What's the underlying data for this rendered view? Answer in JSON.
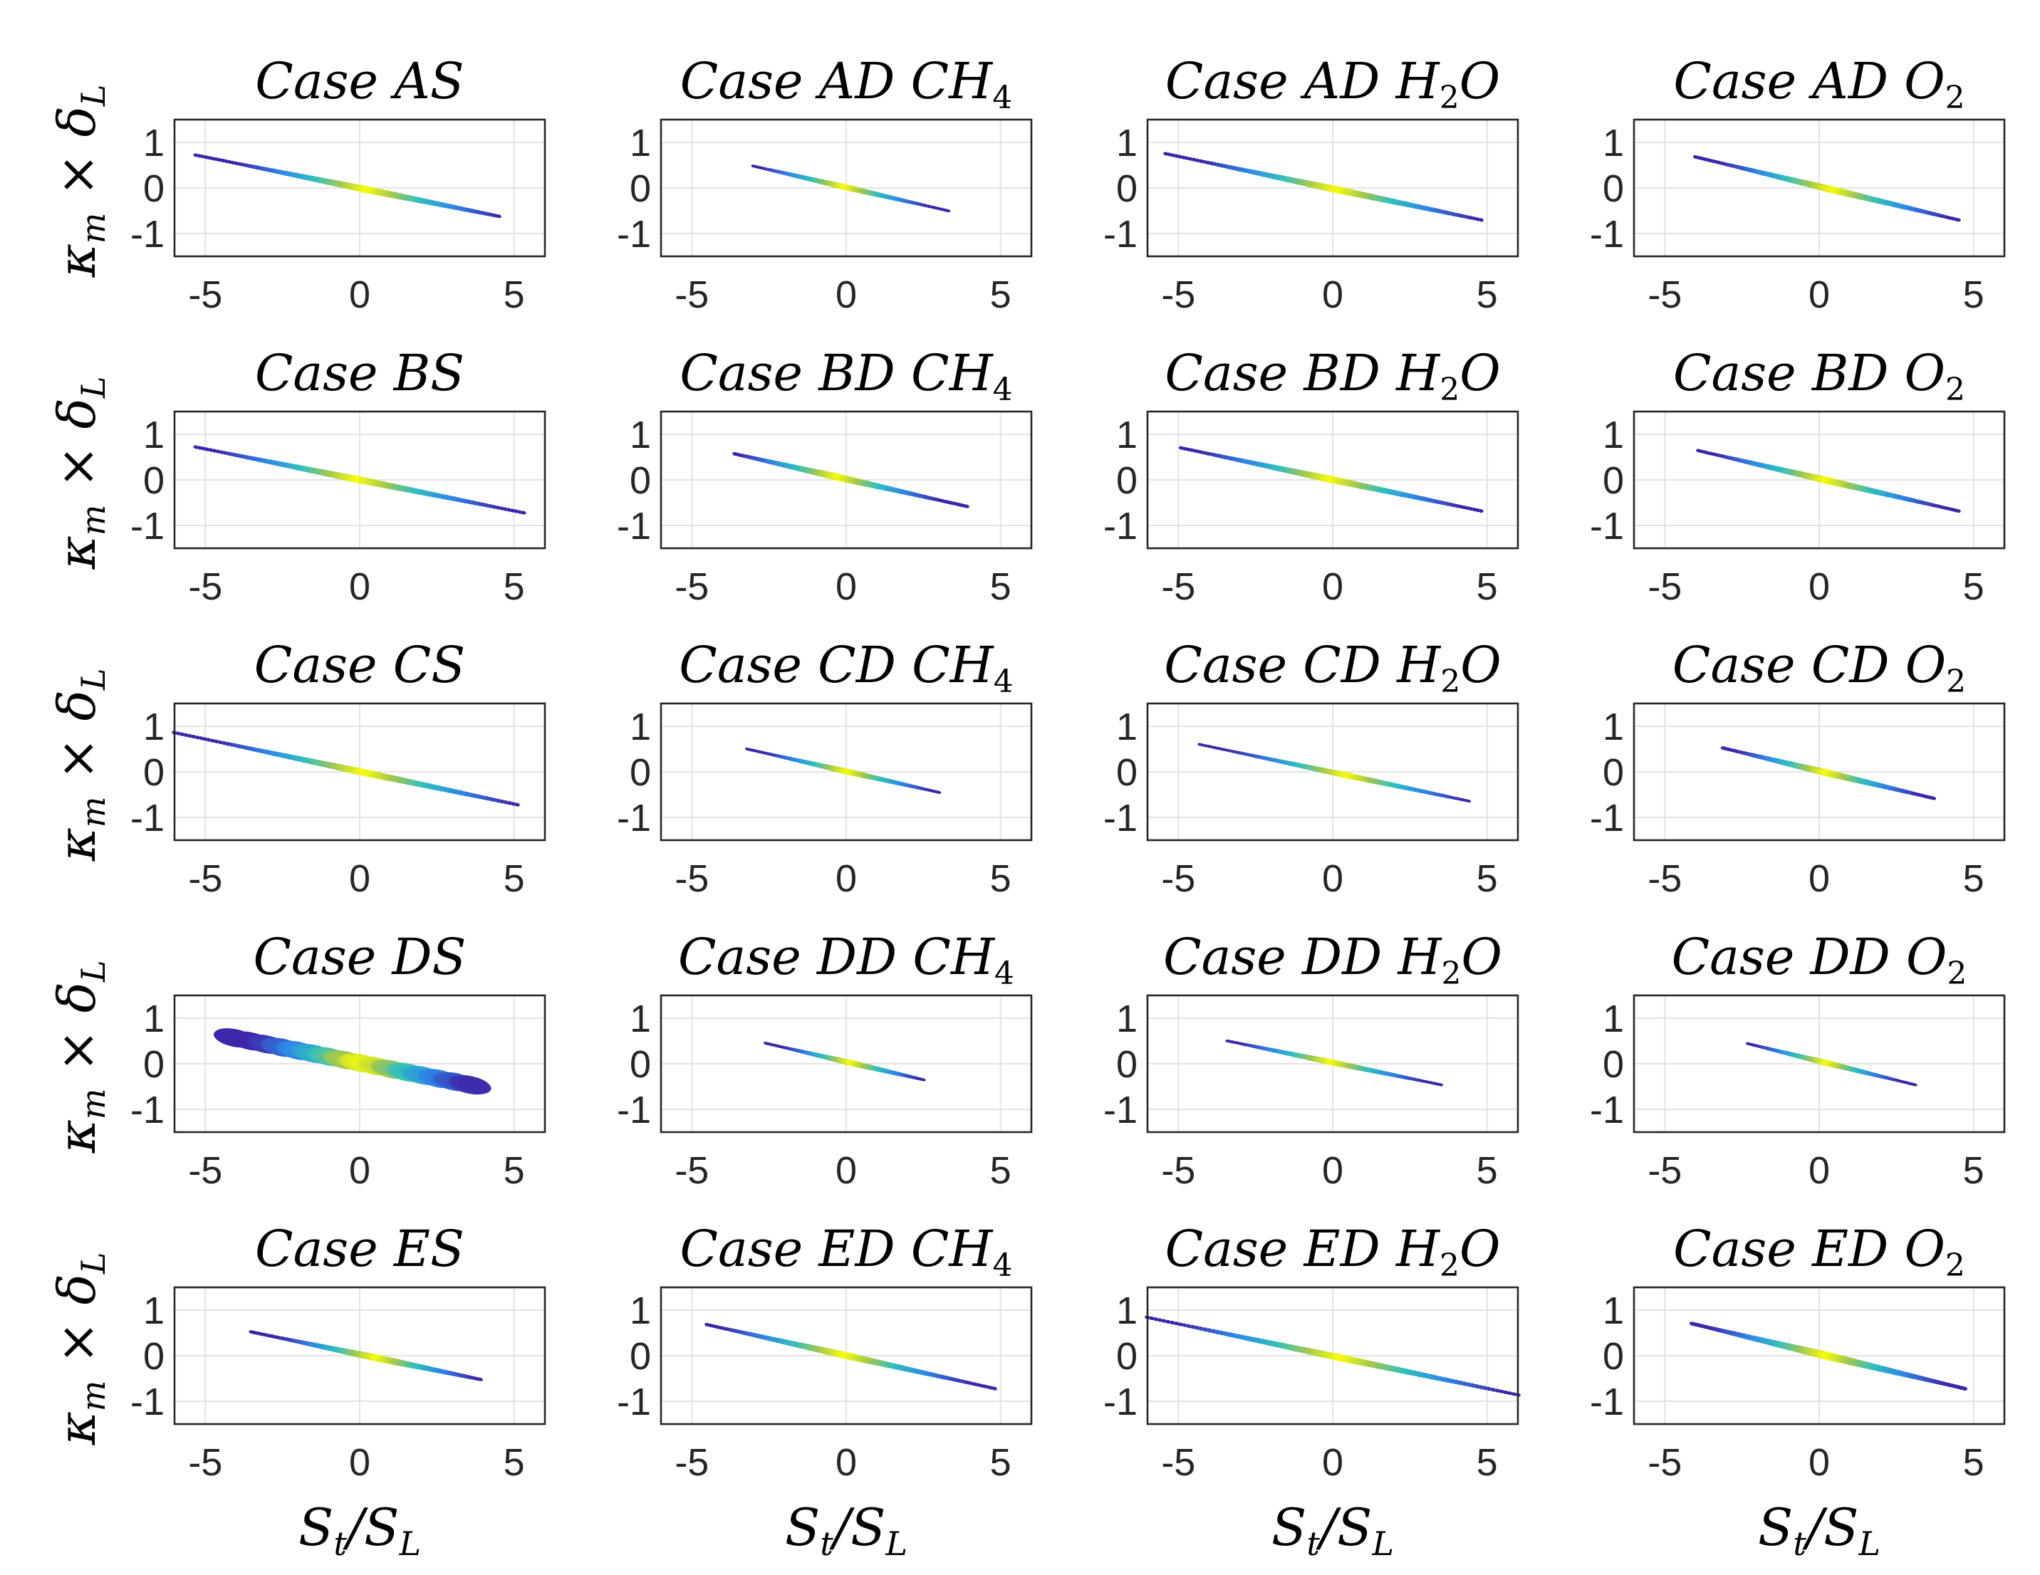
{
  "figure": {
    "ylabel_main": "κ",
    "ylabel_sub_m": "m",
    "ylabel_times": " × δ",
    "ylabel_sub_L": "L",
    "xlabel_main": "S",
    "xlabel_sub_t": "t",
    "xlabel_slash": "/S",
    "xlabel_sub_L": "L"
  },
  "colors": {
    "low": "#3e26a8",
    "mid": "#2fbfc0",
    "high": "#f9fb0e"
  },
  "chart_data": [
    {
      "type": "scatter",
      "title": "Case AS",
      "title_main": "Case AS",
      "title_sub": "",
      "title_tail": "",
      "xlim": [
        -6,
        6
      ],
      "ylim": [
        -1.5,
        1.5
      ],
      "xticks": [
        "-5",
        "0",
        "5"
      ],
      "yticks": [
        "1",
        "0",
        "-1"
      ],
      "x_range": [
        -5.3,
        4.5
      ],
      "y_range": [
        0.72,
        -0.62
      ],
      "peak": 0.3,
      "width": 0.07,
      "grid": true
    },
    {
      "type": "scatter",
      "title": "Case AD CH4",
      "title_main": "Case AD CH",
      "title_sub": "4",
      "title_tail": "",
      "xlim": [
        -6,
        6
      ],
      "ylim": [
        -1.5,
        1.5
      ],
      "xticks": [
        "-5",
        "0",
        "5"
      ],
      "yticks": [
        "1",
        "0",
        "-1"
      ],
      "x_range": [
        -3.0,
        3.3
      ],
      "y_range": [
        0.48,
        -0.5
      ],
      "peak": 0.0,
      "width": 0.06,
      "grid": true
    },
    {
      "type": "scatter",
      "title": "Case AD H2O",
      "title_main": "Case AD H",
      "title_sub": "2",
      "title_tail": "O",
      "xlim": [
        -6,
        6
      ],
      "ylim": [
        -1.5,
        1.5
      ],
      "xticks": [
        "-5",
        "0",
        "5"
      ],
      "yticks": [
        "1",
        "0",
        "-1"
      ],
      "x_range": [
        -5.4,
        4.8
      ],
      "y_range": [
        0.75,
        -0.7
      ],
      "peak": 0.2,
      "width": 0.07,
      "grid": true
    },
    {
      "type": "scatter",
      "title": "Case AD O2",
      "title_main": "Case AD O",
      "title_sub": "2",
      "title_tail": "",
      "xlim": [
        -6,
        6
      ],
      "ylim": [
        -1.5,
        1.5
      ],
      "xticks": [
        "-5",
        "0",
        "5"
      ],
      "yticks": [
        "1",
        "0",
        "-1"
      ],
      "x_range": [
        -4.0,
        4.5
      ],
      "y_range": [
        0.68,
        -0.7
      ],
      "peak": 0.5,
      "width": 0.07,
      "grid": true
    },
    {
      "type": "scatter",
      "title": "Case BS",
      "title_main": "Case BS",
      "title_sub": "",
      "title_tail": "",
      "xlim": [
        -6,
        6
      ],
      "ylim": [
        -1.5,
        1.5
      ],
      "xticks": [
        "-5",
        "0",
        "5"
      ],
      "yticks": [
        "1",
        "0",
        "-1"
      ],
      "x_range": [
        -5.3,
        5.3
      ],
      "y_range": [
        0.72,
        -0.72
      ],
      "peak": 0.0,
      "width": 0.07,
      "grid": true
    },
    {
      "type": "scatter",
      "title": "Case BD CH4",
      "title_main": "Case BD CH",
      "title_sub": "4",
      "title_tail": "",
      "xlim": [
        -6,
        6
      ],
      "ylim": [
        -1.5,
        1.5
      ],
      "xticks": [
        "-5",
        "0",
        "5"
      ],
      "yticks": [
        "1",
        "0",
        "-1"
      ],
      "x_range": [
        -3.6,
        3.9
      ],
      "y_range": [
        0.57,
        -0.58
      ],
      "peak": -0.2,
      "width": 0.07,
      "grid": true
    },
    {
      "type": "scatter",
      "title": "Case BD H2O",
      "title_main": "Case BD H",
      "title_sub": "2",
      "title_tail": "O",
      "xlim": [
        -6,
        6
      ],
      "ylim": [
        -1.5,
        1.5
      ],
      "xticks": [
        "-5",
        "0",
        "5"
      ],
      "yticks": [
        "1",
        "0",
        "-1"
      ],
      "x_range": [
        -4.9,
        4.8
      ],
      "y_range": [
        0.7,
        -0.68
      ],
      "peak": 0.0,
      "width": 0.07,
      "grid": true
    },
    {
      "type": "scatter",
      "title": "Case BD O2",
      "title_main": "Case BD O",
      "title_sub": "2",
      "title_tail": "",
      "xlim": [
        -6,
        6
      ],
      "ylim": [
        -1.5,
        1.5
      ],
      "xticks": [
        "-5",
        "0",
        "5"
      ],
      "yticks": [
        "1",
        "0",
        "-1"
      ],
      "x_range": [
        -3.9,
        4.5
      ],
      "y_range": [
        0.64,
        -0.68
      ],
      "peak": 0.3,
      "width": 0.07,
      "grid": true
    },
    {
      "type": "scatter",
      "title": "Case CS",
      "title_main": "Case CS",
      "title_sub": "",
      "title_tail": "",
      "xlim": [
        -6,
        6
      ],
      "ylim": [
        -1.5,
        1.5
      ],
      "xticks": [
        "-5",
        "0",
        "5"
      ],
      "yticks": [
        "1",
        "0",
        "-1"
      ],
      "x_range": [
        -6.0,
        5.1
      ],
      "y_range": [
        0.86,
        -0.72
      ],
      "peak": 0.2,
      "width": 0.07,
      "grid": true
    },
    {
      "type": "scatter",
      "title": "Case CD CH4",
      "title_main": "Case CD CH",
      "title_sub": "4",
      "title_tail": "",
      "xlim": [
        -6,
        6
      ],
      "ylim": [
        -1.5,
        1.5
      ],
      "xticks": [
        "-5",
        "0",
        "5"
      ],
      "yticks": [
        "1",
        "0",
        "-1"
      ],
      "x_range": [
        -3.2,
        3.0
      ],
      "y_range": [
        0.5,
        -0.45
      ],
      "peak": 0.1,
      "width": 0.06,
      "grid": true
    },
    {
      "type": "scatter",
      "title": "Case CD H2O",
      "title_main": "Case CD H",
      "title_sub": "2",
      "title_tail": "O",
      "xlim": [
        -6,
        6
      ],
      "ylim": [
        -1.5,
        1.5
      ],
      "xticks": [
        "-5",
        "0",
        "5"
      ],
      "yticks": [
        "1",
        "0",
        "-1"
      ],
      "x_range": [
        -4.3,
        4.4
      ],
      "y_range": [
        0.6,
        -0.64
      ],
      "peak": 0.5,
      "width": 0.06,
      "grid": true
    },
    {
      "type": "scatter",
      "title": "Case CD O2",
      "title_main": "Case CD O",
      "title_sub": "2",
      "title_tail": "",
      "xlim": [
        -6,
        6
      ],
      "ylim": [
        -1.5,
        1.5
      ],
      "xticks": [
        "-5",
        "0",
        "5"
      ],
      "yticks": [
        "1",
        "0",
        "-1"
      ],
      "x_range": [
        -3.1,
        3.7
      ],
      "y_range": [
        0.52,
        -0.58
      ],
      "peak": 0.3,
      "width": 0.07,
      "grid": true
    },
    {
      "type": "scatter",
      "title": "Case DS",
      "title_main": "Case DS",
      "title_sub": "",
      "title_tail": "",
      "xlim": [
        -6,
        6
      ],
      "ylim": [
        -1.5,
        1.5
      ],
      "xticks": [
        "-5",
        "0",
        "5"
      ],
      "yticks": [
        "1",
        "0",
        "-1"
      ],
      "x_range": [
        -4.3,
        3.7
      ],
      "y_range": [
        0.6,
        -0.48
      ],
      "peak": 0.3,
      "width": 0.14,
      "grid": true,
      "blobby": true
    },
    {
      "type": "scatter",
      "title": "Case DD CH4",
      "title_main": "Case DD CH",
      "title_sub": "4",
      "title_tail": "",
      "xlim": [
        -6,
        6
      ],
      "ylim": [
        -1.5,
        1.5
      ],
      "xticks": [
        "-5",
        "0",
        "5"
      ],
      "yticks": [
        "1",
        "0",
        "-1"
      ],
      "x_range": [
        -2.6,
        2.5
      ],
      "y_range": [
        0.45,
        -0.35
      ],
      "peak": 0.2,
      "width": 0.06,
      "grid": true
    },
    {
      "type": "scatter",
      "title": "Case DD H2O",
      "title_main": "Case DD H",
      "title_sub": "2",
      "title_tail": "O",
      "xlim": [
        -6,
        6
      ],
      "ylim": [
        -1.5,
        1.5
      ],
      "xticks": [
        "-5",
        "0",
        "5"
      ],
      "yticks": [
        "1",
        "0",
        "-1"
      ],
      "x_range": [
        -3.4,
        3.5
      ],
      "y_range": [
        0.5,
        -0.46
      ],
      "peak": 0.0,
      "width": 0.06,
      "grid": true
    },
    {
      "type": "scatter",
      "title": "Case DD O2",
      "title_main": "Case DD O",
      "title_sub": "2",
      "title_tail": "",
      "xlim": [
        -6,
        6
      ],
      "ylim": [
        -1.5,
        1.5
      ],
      "xticks": [
        "-5",
        "0",
        "5"
      ],
      "yticks": [
        "1",
        "0",
        "-1"
      ],
      "x_range": [
        -2.3,
        3.1
      ],
      "y_range": [
        0.44,
        -0.46
      ],
      "peak": 0.3,
      "width": 0.06,
      "grid": true
    },
    {
      "type": "scatter",
      "title": "Case ES",
      "title_main": "Case ES",
      "title_sub": "",
      "title_tail": "",
      "xlim": [
        -6,
        6
      ],
      "ylim": [
        -1.5,
        1.5
      ],
      "xticks": [
        "-5",
        "0",
        "5"
      ],
      "yticks": [
        "1",
        "0",
        "-1"
      ],
      "x_range": [
        -3.5,
        3.9
      ],
      "y_range": [
        0.52,
        -0.52
      ],
      "peak": 0.6,
      "width": 0.07,
      "grid": true
    },
    {
      "type": "scatter",
      "title": "Case ED CH4",
      "title_main": "Case ED CH",
      "title_sub": "4",
      "title_tail": "",
      "xlim": [
        -6,
        6
      ],
      "ylim": [
        -1.5,
        1.5
      ],
      "xticks": [
        "-5",
        "0",
        "5"
      ],
      "yticks": [
        "1",
        "0",
        "-1"
      ],
      "x_range": [
        -4.5,
        4.8
      ],
      "y_range": [
        0.68,
        -0.72
      ],
      "peak": 0.0,
      "width": 0.07,
      "grid": true
    },
    {
      "type": "scatter",
      "title": "Case ED H2O",
      "title_main": "Case ED H",
      "title_sub": "2",
      "title_tail": "O",
      "xlim": [
        -6,
        6
      ],
      "ylim": [
        -1.5,
        1.5
      ],
      "xticks": [
        "-5",
        "0",
        "5"
      ],
      "yticks": [
        "1",
        "0",
        "-1"
      ],
      "x_range": [
        -6.0,
        6.0
      ],
      "y_range": [
        0.84,
        -0.86
      ],
      "peak": 0.3,
      "width": 0.07,
      "grid": true
    },
    {
      "type": "scatter",
      "title": "Case ED O2",
      "title_main": "Case ED O",
      "title_sub": "2",
      "title_tail": "",
      "xlim": [
        -6,
        6
      ],
      "ylim": [
        -1.5,
        1.5
      ],
      "xticks": [
        "-5",
        "0",
        "5"
      ],
      "yticks": [
        "1",
        "0",
        "-1"
      ],
      "x_range": [
        -4.1,
        4.7
      ],
      "y_range": [
        0.7,
        -0.72
      ],
      "peak": 0.3,
      "width": 0.08,
      "grid": true
    }
  ]
}
